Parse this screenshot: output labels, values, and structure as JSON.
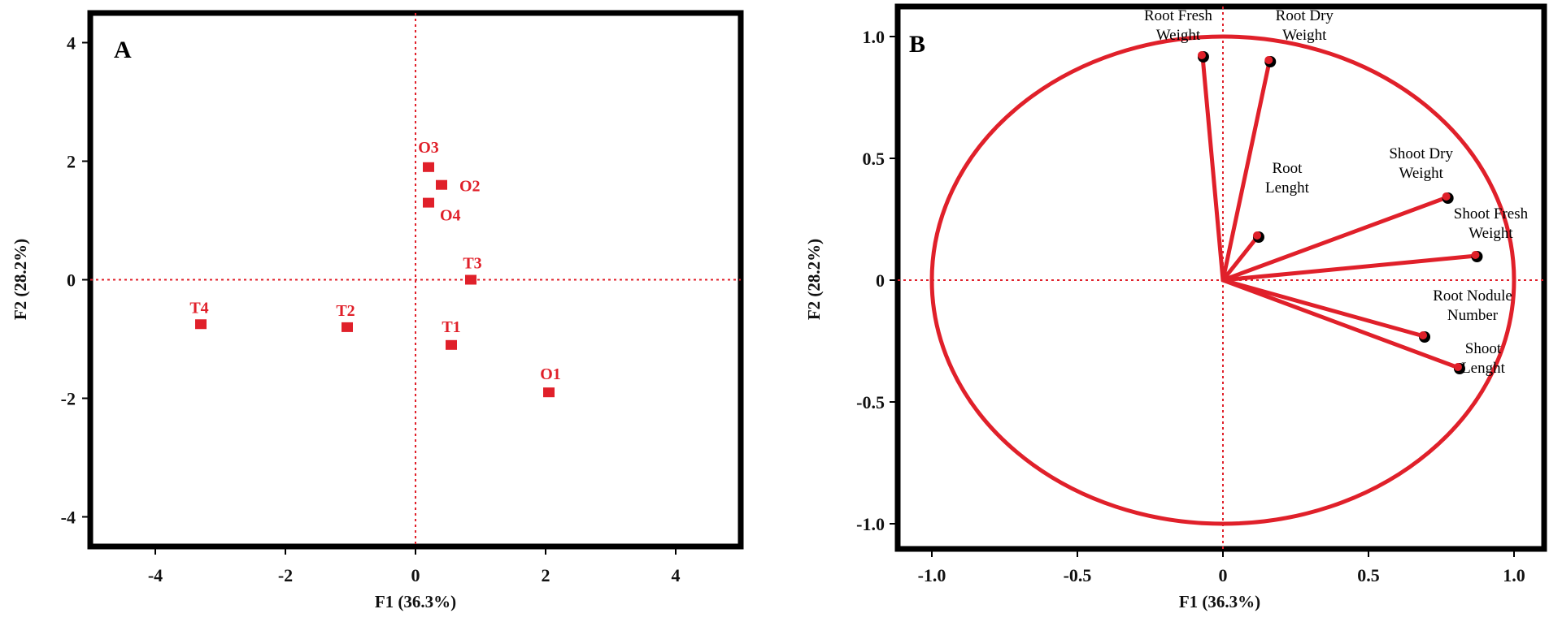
{
  "colors": {
    "red": "#e0202a",
    "frame": "#000000"
  },
  "chart_data": [
    {
      "type": "scatter",
      "panel": "A",
      "xlabel": "F1 (36.3%)",
      "ylabel": "F2 (28.2%)",
      "xlim": [
        -5,
        5
      ],
      "ylim": [
        -4.5,
        4.5
      ],
      "xticks": [
        "-4",
        "-2",
        "0",
        "2",
        "4"
      ],
      "yticks": [
        "4",
        "2",
        "0",
        "-2",
        "-4"
      ],
      "points": [
        {
          "name": "O3",
          "x": 0.2,
          "y": 1.9
        },
        {
          "name": "O2",
          "x": 0.4,
          "y": 1.6
        },
        {
          "name": "O4",
          "x": 0.2,
          "y": 1.3
        },
        {
          "name": "T3",
          "x": 0.85,
          "y": 0.0
        },
        {
          "name": "T4",
          "x": -3.3,
          "y": -0.75
        },
        {
          "name": "T2",
          "x": -1.05,
          "y": -0.8
        },
        {
          "name": "T1",
          "x": 0.55,
          "y": -1.1
        },
        {
          "name": "O1",
          "x": 2.05,
          "y": -1.9
        }
      ]
    },
    {
      "type": "correlation-circle",
      "panel": "B",
      "xlabel": "F1 (36.3%)",
      "ylabel": "F2 (28.2%)",
      "xlim": [
        -1.1,
        1.1
      ],
      "ylim": [
        -1.1,
        1.1
      ],
      "xticks": [
        "-1.0",
        "-0.5",
        "0",
        "0.5",
        "1.0"
      ],
      "yticks": [
        "1.0",
        "0.5",
        "0",
        "-0.5",
        "-1.0"
      ],
      "vectors": [
        {
          "name": "Root Fresh Weight",
          "lines": [
            "Root Fresh",
            "Weight"
          ],
          "x": -0.07,
          "y": 0.92
        },
        {
          "name": "Root Dry Weight",
          "lines": [
            "Root Dry",
            "Weight"
          ],
          "x": 0.16,
          "y": 0.9
        },
        {
          "name": "Root Lenght",
          "lines": [
            "Root",
            "Lenght"
          ],
          "x": 0.12,
          "y": 0.18
        },
        {
          "name": "Shoot Dry Weight",
          "lines": [
            "Shoot Dry",
            "Weight"
          ],
          "x": 0.77,
          "y": 0.34
        },
        {
          "name": "Shoot Fresh Weight",
          "lines": [
            "Shoot Fresh",
            "Weight"
          ],
          "x": 0.87,
          "y": 0.1
        },
        {
          "name": "Root Nodule Number",
          "lines": [
            "Root Nodule",
            "Number"
          ],
          "x": 0.69,
          "y": -0.23
        },
        {
          "name": "Shoot Lenght",
          "lines": [
            "Shoot",
            "Lenght"
          ],
          "x": 0.81,
          "y": -0.36
        }
      ]
    }
  ]
}
